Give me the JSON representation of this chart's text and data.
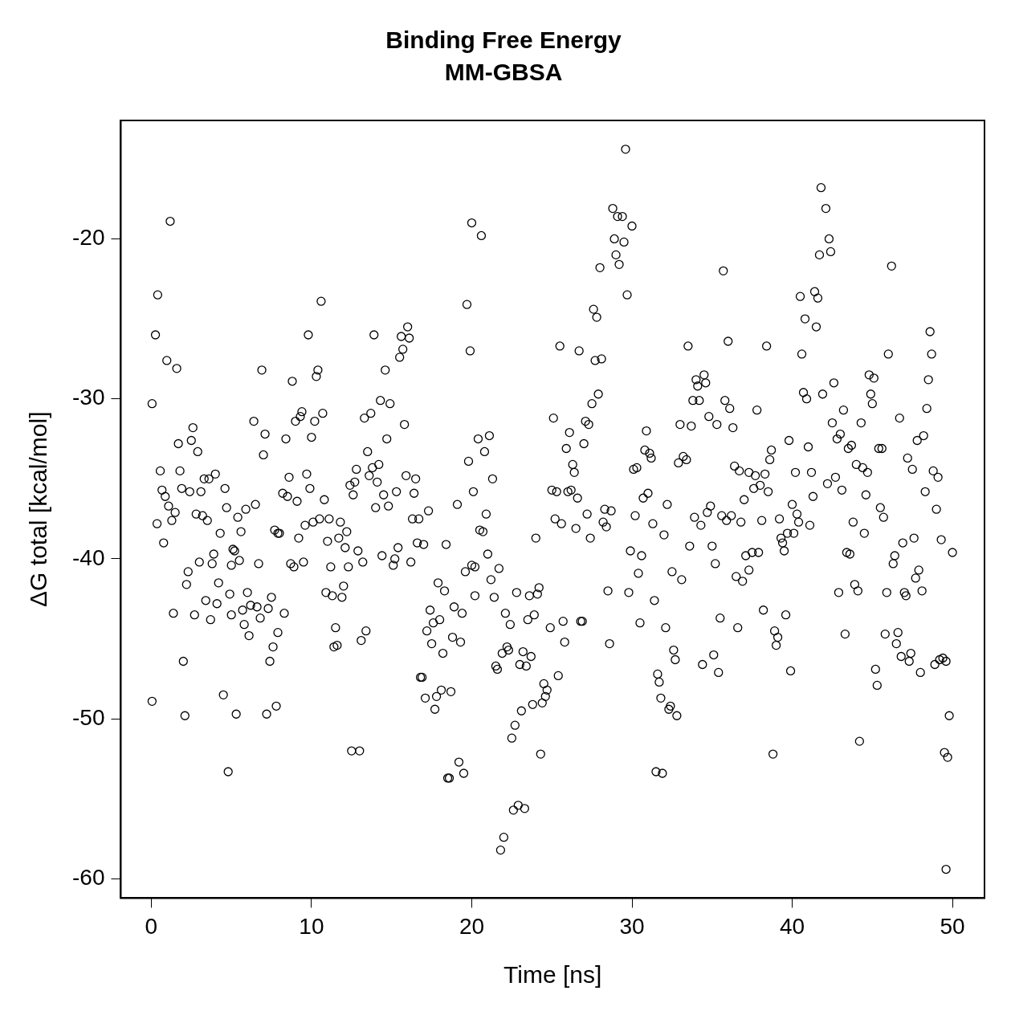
{
  "chart_data": {
    "type": "scatter",
    "title": "Binding Free Energy",
    "subtitle": "MM-GBSA",
    "xlabel": "Time [ns]",
    "ylabel": "ΔG total [kcal/mol]",
    "xlim": [
      -1.9,
      52
    ],
    "xticks": [
      0,
      10,
      20,
      30,
      40,
      50
    ],
    "ylim": [
      -61.2,
      -12.6
    ],
    "yticks": [
      -60,
      -50,
      -40,
      -30,
      -20
    ],
    "grid": false,
    "legend": false,
    "marker": "circle",
    "series": [
      {
        "color": "#000000",
        "x": [
          0.05,
          0.05,
          0.26,
          0.4,
          0.36,
          0.56,
          0.67,
          0.77,
          0.87,
          0.97,
          1.08,
          1.18,
          1.28,
          1.38,
          1.49,
          1.59,
          1.69,
          1.79,
          1.9,
          2.0,
          2.1,
          2.2,
          2.3,
          2.4,
          2.5,
          2.6,
          2.7,
          2.8,
          2.9,
          3.0,
          3.1,
          3.2,
          3.3,
          3.4,
          3.5,
          3.6,
          3.7,
          3.8,
          3.9,
          4.0,
          4.1,
          4.2,
          4.3,
          4.5,
          4.6,
          4.7,
          4.8,
          4.9,
          5.0,
          5.0,
          5.1,
          5.2,
          5.3,
          5.4,
          5.5,
          5.6,
          5.7,
          5.8,
          5.9,
          6.0,
          6.1,
          6.2,
          6.4,
          6.5,
          6.6,
          6.7,
          6.8,
          6.9,
          7.0,
          7.1,
          7.2,
          7.3,
          7.4,
          7.5,
          7.6,
          7.7,
          7.8,
          7.9,
          7.9,
          8.0,
          8.2,
          8.3,
          8.4,
          8.5,
          8.6,
          8.7,
          8.8,
          8.9,
          9.0,
          9.1,
          9.2,
          9.3,
          9.4,
          9.5,
          9.6,
          9.7,
          9.8,
          9.9,
          10.0,
          10.1,
          10.2,
          10.3,
          10.4,
          10.5,
          10.6,
          10.7,
          10.8,
          10.9,
          11.0,
          11.1,
          11.2,
          11.3,
          11.4,
          11.5,
          11.6,
          11.7,
          11.8,
          11.9,
          12.0,
          12.1,
          12.2,
          12.3,
          12.4,
          12.5,
          12.6,
          12.7,
          12.8,
          12.9,
          13.0,
          13.1,
          13.2,
          13.3,
          13.4,
          13.5,
          13.6,
          13.7,
          13.8,
          13.9,
          14.0,
          14.1,
          14.2,
          14.3,
          14.4,
          14.5,
          14.6,
          14.7,
          14.8,
          14.9,
          15.1,
          15.2,
          15.3,
          15.4,
          15.5,
          15.6,
          15.7,
          15.8,
          15.9,
          16.0,
          16.1,
          16.2,
          16.3,
          16.4,
          16.5,
          16.6,
          16.7,
          16.8,
          16.9,
          17.0,
          17.1,
          17.2,
          17.3,
          17.4,
          17.5,
          17.6,
          17.7,
          17.8,
          17.9,
          18.0,
          18.1,
          18.2,
          18.3,
          18.4,
          18.5,
          18.6,
          18.7,
          18.8,
          18.9,
          19.1,
          19.2,
          19.3,
          19.4,
          19.5,
          19.6,
          19.7,
          19.8,
          19.9,
          20.0,
          20.0,
          20.1,
          20.2,
          20.2,
          20.4,
          20.5,
          20.6,
          20.7,
          20.8,
          20.9,
          21.0,
          21.1,
          21.2,
          21.3,
          21.4,
          21.5,
          21.6,
          21.7,
          21.8,
          21.9,
          22.0,
          22.1,
          22.2,
          22.3,
          22.4,
          22.5,
          22.6,
          22.7,
          22.8,
          22.9,
          23.0,
          23.1,
          23.2,
          23.3,
          23.4,
          23.5,
          23.6,
          23.7,
          23.8,
          23.9,
          24.0,
          24.1,
          24.2,
          24.3,
          24.4,
          24.5,
          24.6,
          24.7,
          24.9,
          25.0,
          25.1,
          25.2,
          25.3,
          25.4,
          25.5,
          25.6,
          25.7,
          25.8,
          25.9,
          26.0,
          26.1,
          26.2,
          26.3,
          26.4,
          26.5,
          26.6,
          26.7,
          26.8,
          26.9,
          27.0,
          27.1,
          27.2,
          27.3,
          27.4,
          27.5,
          27.6,
          27.7,
          27.8,
          27.9,
          28.0,
          28.1,
          28.2,
          28.3,
          28.4,
          28.5,
          28.6,
          28.7,
          28.8,
          28.9,
          29.0,
          29.1,
          29.2,
          29.4,
          29.5,
          29.6,
          29.7,
          29.8,
          29.9,
          30.0,
          30.1,
          30.2,
          30.3,
          30.4,
          30.5,
          30.6,
          30.7,
          30.8,
          30.9,
          31.0,
          31.1,
          31.2,
          31.3,
          31.4,
          31.5,
          31.6,
          31.7,
          31.8,
          31.9,
          32.0,
          32.1,
          32.2,
          32.3,
          32.4,
          32.5,
          32.6,
          32.7,
          32.8,
          32.9,
          33.0,
          33.1,
          33.2,
          33.4,
          33.5,
          33.6,
          33.7,
          33.8,
          33.9,
          34.0,
          34.1,
          34.2,
          34.3,
          34.4,
          34.5,
          34.6,
          34.7,
          34.8,
          34.9,
          35.0,
          35.1,
          35.2,
          35.3,
          35.4,
          35.5,
          35.6,
          35.7,
          35.8,
          35.9,
          36.0,
          36.1,
          36.2,
          36.3,
          36.4,
          36.5,
          36.6,
          36.7,
          36.8,
          36.9,
          37.0,
          37.1,
          37.3,
          37.3,
          37.5,
          37.6,
          37.7,
          37.8,
          37.9,
          38.0,
          38.1,
          38.2,
          38.3,
          38.4,
          38.5,
          38.6,
          38.7,
          38.8,
          38.9,
          39.0,
          39.1,
          39.2,
          39.3,
          39.4,
          39.5,
          39.6,
          39.7,
          39.8,
          39.9,
          40.0,
          40.1,
          40.2,
          40.3,
          40.4,
          40.5,
          40.6,
          40.7,
          40.8,
          40.9,
          41.0,
          41.1,
          41.2,
          41.3,
          41.4,
          41.5,
          41.6,
          41.7,
          41.8,
          41.9,
          42.1,
          42.2,
          42.3,
          42.4,
          42.5,
          42.6,
          42.7,
          42.8,
          42.9,
          43.0,
          43.1,
          43.2,
          43.3,
          43.4,
          43.5,
          43.6,
          43.7,
          43.8,
          43.9,
          44.0,
          44.1,
          44.2,
          44.3,
          44.4,
          44.5,
          44.6,
          44.7,
          44.8,
          44.9,
          45.0,
          45.1,
          45.2,
          45.3,
          45.4,
          45.5,
          45.6,
          45.7,
          45.8,
          45.9,
          46.0,
          46.2,
          46.3,
          46.4,
          46.5,
          46.6,
          46.7,
          46.8,
          46.9,
          47.0,
          47.1,
          47.2,
          47.3,
          47.4,
          47.5,
          47.6,
          47.7,
          47.8,
          47.9,
          48.0,
          48.1,
          48.2,
          48.3,
          48.4,
          48.5,
          48.6,
          48.7,
          48.8,
          48.9,
          49.0,
          49.1,
          49.2,
          49.3,
          49.4,
          49.5,
          49.6,
          49.6,
          49.7,
          49.8,
          50.0
        ],
        "values": [
          -30.3,
          -48.9,
          -26.0,
          -23.5,
          -37.8,
          -34.5,
          -35.7,
          -39.0,
          -36.1,
          -27.6,
          -36.7,
          -18.9,
          -37.6,
          -43.4,
          -37.1,
          -28.1,
          -32.8,
          -34.5,
          -35.6,
          -46.4,
          -49.8,
          -41.6,
          -40.8,
          -35.8,
          -32.6,
          -31.8,
          -43.5,
          -37.2,
          -33.3,
          -40.2,
          -35.8,
          -37.3,
          -35.0,
          -42.6,
          -37.6,
          -35.0,
          -43.8,
          -40.3,
          -39.7,
          -34.7,
          -42.8,
          -41.5,
          -38.4,
          -48.5,
          -35.6,
          -36.8,
          -53.3,
          -42.2,
          -43.5,
          -40.4,
          -39.4,
          -39.5,
          -49.7,
          -37.4,
          -40.1,
          -38.3,
          -43.2,
          -44.1,
          -36.9,
          -42.1,
          -44.8,
          -42.9,
          -31.4,
          -36.6,
          -43.0,
          -40.3,
          -43.7,
          -28.2,
          -33.5,
          -32.2,
          -49.7,
          -43.1,
          -46.4,
          -42.4,
          -45.5,
          -38.2,
          -49.2,
          -44.6,
          -38.4,
          -38.4,
          -35.9,
          -43.4,
          -32.5,
          -36.1,
          -34.9,
          -40.3,
          -28.9,
          -40.5,
          -31.4,
          -36.4,
          -38.7,
          -31.1,
          -30.8,
          -40.2,
          -37.9,
          -34.7,
          -26.0,
          -35.6,
          -32.4,
          -37.7,
          -31.4,
          -28.6,
          -28.2,
          -37.5,
          -23.9,
          -30.9,
          -36.3,
          -42.1,
          -38.9,
          -37.5,
          -40.5,
          -42.3,
          -45.5,
          -44.3,
          -45.4,
          -38.7,
          -37.7,
          -42.4,
          -41.7,
          -39.3,
          -38.3,
          -40.5,
          -35.4,
          -52.0,
          -36.0,
          -35.2,
          -34.4,
          -39.5,
          -52.0,
          -45.1,
          -40.2,
          -31.2,
          -44.5,
          -33.3,
          -34.8,
          -30.9,
          -34.3,
          -26.0,
          -36.8,
          -35.2,
          -34.1,
          -30.1,
          -39.8,
          -36.0,
          -28.2,
          -32.5,
          -36.7,
          -30.3,
          -40.4,
          -40.0,
          -35.8,
          -39.3,
          -27.4,
          -26.1,
          -26.9,
          -31.6,
          -34.8,
          -25.5,
          -26.2,
          -40.2,
          -37.5,
          -35.9,
          -35.0,
          -39.0,
          -37.5,
          -47.4,
          -47.4,
          -39.1,
          -48.7,
          -44.5,
          -37.0,
          -43.2,
          -45.3,
          -44.0,
          -49.4,
          -48.6,
          -41.5,
          -43.8,
          -48.2,
          -45.9,
          -42.0,
          -39.1,
          -53.7,
          -53.7,
          -48.3,
          -44.9,
          -43.0,
          -36.6,
          -52.7,
          -45.2,
          -43.4,
          -53.4,
          -40.8,
          -24.1,
          -33.9,
          -27.0,
          -19.0,
          -40.4,
          -35.8,
          -42.3,
          -40.5,
          -32.5,
          -38.2,
          -19.8,
          -38.3,
          -33.3,
          -37.2,
          -39.7,
          -32.3,
          -41.3,
          -35.0,
          -42.4,
          -46.7,
          -46.9,
          -40.6,
          -58.2,
          -45.9,
          -57.4,
          -43.4,
          -45.5,
          -45.7,
          -44.1,
          -51.2,
          -55.7,
          -50.4,
          -42.1,
          -55.4,
          -46.6,
          -49.5,
          -45.8,
          -55.6,
          -46.7,
          -43.8,
          -42.3,
          -46.1,
          -49.1,
          -43.5,
          -38.7,
          -42.2,
          -41.8,
          -52.2,
          -49.0,
          -47.8,
          -48.6,
          -48.2,
          -44.3,
          -35.7,
          -31.2,
          -37.5,
          -35.8,
          -47.3,
          -26.7,
          -37.8,
          -43.9,
          -45.2,
          -33.1,
          -35.8,
          -32.1,
          -35.7,
          -34.1,
          -34.6,
          -38.1,
          -36.2,
          -27.0,
          -43.9,
          -43.9,
          -32.8,
          -31.4,
          -37.2,
          -31.6,
          -38.7,
          -30.3,
          -24.4,
          -27.6,
          -24.9,
          -29.7,
          -21.8,
          -27.5,
          -37.7,
          -36.9,
          -38.0,
          -42.0,
          -45.3,
          -37.0,
          -18.1,
          -20.0,
          -21.0,
          -18.6,
          -21.6,
          -18.6,
          -20.2,
          -14.4,
          -23.5,
          -42.1,
          -39.5,
          -19.2,
          -34.4,
          -37.3,
          -34.3,
          -40.9,
          -44.0,
          -39.8,
          -36.2,
          -33.2,
          -32.0,
          -35.9,
          -33.4,
          -33.7,
          -37.8,
          -42.6,
          -53.3,
          -47.2,
          -47.7,
          -48.7,
          -53.4,
          -38.5,
          -44.3,
          -36.6,
          -49.4,
          -49.2,
          -40.8,
          -45.7,
          -46.3,
          -49.8,
          -34.0,
          -31.6,
          -41.3,
          -33.6,
          -33.8,
          -26.7,
          -39.2,
          -31.7,
          -30.1,
          -37.4,
          -28.8,
          -29.2,
          -30.1,
          -37.9,
          -46.6,
          -28.5,
          -29.0,
          -37.1,
          -31.1,
          -36.7,
          -39.2,
          -46.0,
          -40.3,
          -31.6,
          -47.1,
          -43.7,
          -37.3,
          -22.0,
          -30.1,
          -37.6,
          -26.4,
          -30.6,
          -37.3,
          -31.8,
          -34.2,
          -41.1,
          -44.3,
          -34.5,
          -37.7,
          -41.4,
          -36.3,
          -39.8,
          -34.6,
          -40.7,
          -39.6,
          -35.6,
          -34.8,
          -30.7,
          -39.6,
          -35.4,
          -37.6,
          -43.2,
          -34.7,
          -26.7,
          -35.8,
          -33.8,
          -33.2,
          -52.2,
          -44.5,
          -45.4,
          -44.9,
          -37.5,
          -38.7,
          -39.0,
          -39.5,
          -43.5,
          -38.4,
          -32.6,
          -47.0,
          -36.6,
          -38.4,
          -34.6,
          -37.2,
          -37.7,
          -23.6,
          -27.2,
          -29.6,
          -25.0,
          -30.0,
          -33.0,
          -37.9,
          -34.6,
          -36.1,
          -23.3,
          -25.5,
          -23.7,
          -21.0,
          -16.8,
          -29.7,
          -18.1,
          -35.3,
          -20.0,
          -20.8,
          -31.5,
          -29.0,
          -34.9,
          -32.5,
          -42.1,
          -32.2,
          -35.7,
          -30.7,
          -44.7,
          -39.6,
          -33.1,
          -39.7,
          -32.9,
          -37.7,
          -41.6,
          -34.1,
          -42.0,
          -51.4,
          -31.5,
          -34.3,
          -38.4,
          -36.0,
          -34.6,
          -28.5,
          -29.7,
          -30.3,
          -28.7,
          -46.9,
          -47.9,
          -33.1,
          -36.8,
          -33.1,
          -37.4,
          -44.7,
          -42.1,
          -27.2,
          -21.7,
          -40.3,
          -39.8,
          -45.3,
          -44.6,
          -31.2,
          -46.1,
          -39.0,
          -42.1,
          -42.3,
          -33.7,
          -46.4,
          -45.9,
          -34.4,
          -38.7,
          -41.2,
          -32.6,
          -40.7,
          -47.1,
          -42.0,
          -32.3,
          -35.8,
          -30.6,
          -28.8,
          -25.8,
          -27.2,
          -34.5,
          -46.6,
          -36.9,
          -34.9,
          -46.3,
          -38.8,
          -46.2,
          -52.1,
          -46.4,
          -59.4,
          -52.4,
          -49.8,
          -39.6
        ]
      }
    ]
  }
}
